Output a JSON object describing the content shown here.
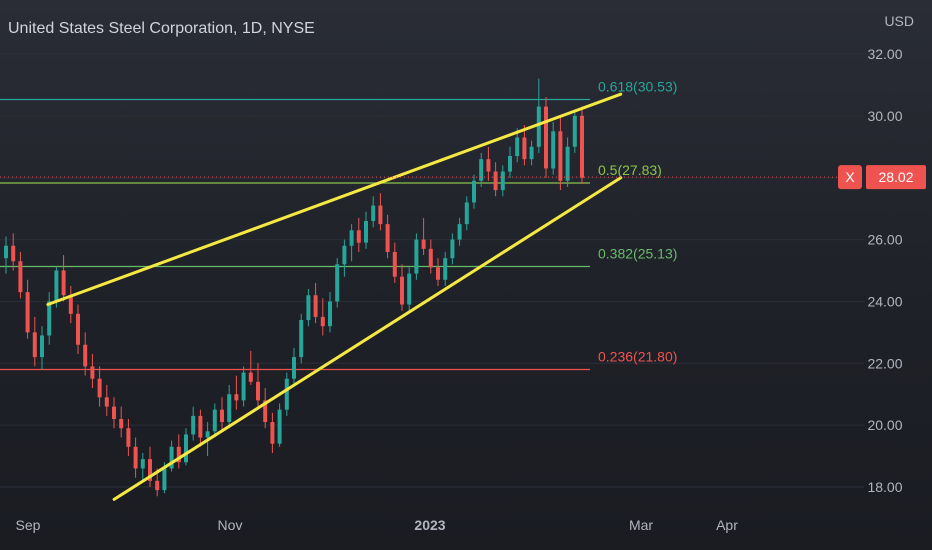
{
  "header": {
    "title": "United States Steel Corporation, 1D, NYSE",
    "currency": "USD"
  },
  "price_tag": {
    "symbol": "X",
    "value": "28.02",
    "color": "#ef5350"
  },
  "colors": {
    "up": "#26a69a",
    "down": "#ef5350",
    "wedge": "#f5e842",
    "fib_618": "#26a69a",
    "fib_5": "#8bc34a",
    "fib_382": "#66bb6a",
    "fib_236": "#ef5350"
  },
  "chart_data": {
    "type": "candlestick",
    "title": "United States Steel Corporation, 1D, NYSE",
    "y_axis": {
      "label": "USD",
      "ticks": [
        "32.00",
        "30.00",
        "28.00",
        "26.00",
        "24.00",
        "22.00",
        "20.00",
        "18.00"
      ],
      "range": [
        17.5,
        32.8
      ]
    },
    "x_axis": {
      "ticks": [
        "Sep",
        "Nov",
        "2023",
        "Mar",
        "Apr"
      ]
    },
    "fib_levels": [
      {
        "label": "0.618(30.53)",
        "value": 30.53
      },
      {
        "label": "0.5(27.83)",
        "value": 27.83
      },
      {
        "label": "0.382(25.13)",
        "value": 25.13
      },
      {
        "label": "0.236(21.80)",
        "value": 21.8
      }
    ],
    "wedge_lines": [
      {
        "name": "upper",
        "from": {
          "date": "2022-09-07",
          "price": 23.9
        },
        "to": {
          "date": "2023-02-27",
          "price": 30.7
        }
      },
      {
        "name": "lower",
        "from": {
          "date": "2022-09-27",
          "price": 17.6
        },
        "to": {
          "date": "2023-02-27",
          "price": 28.0
        }
      }
    ],
    "last_price": 28.02,
    "candles": [
      [
        25.4,
        26.1,
        24.9,
        25.8
      ],
      [
        25.8,
        26.2,
        25.0,
        25.3
      ],
      [
        25.3,
        25.6,
        24.1,
        24.3
      ],
      [
        24.3,
        24.7,
        22.8,
        23.0
      ],
      [
        23.0,
        23.5,
        21.9,
        22.2
      ],
      [
        22.2,
        23.2,
        21.8,
        22.9
      ],
      [
        22.9,
        24.3,
        22.6,
        24.0
      ],
      [
        24.0,
        25.1,
        23.8,
        25.0
      ],
      [
        25.0,
        25.5,
        24.0,
        24.2
      ],
      [
        24.2,
        24.5,
        23.3,
        23.6
      ],
      [
        23.6,
        23.9,
        22.3,
        22.6
      ],
      [
        22.6,
        23.0,
        21.6,
        21.9
      ],
      [
        21.9,
        22.3,
        21.2,
        21.5
      ],
      [
        21.5,
        21.9,
        20.6,
        20.9
      ],
      [
        20.9,
        21.3,
        20.3,
        20.6
      ],
      [
        20.6,
        20.9,
        19.9,
        20.2
      ],
      [
        20.2,
        20.6,
        19.6,
        19.9
      ],
      [
        19.9,
        20.2,
        19.0,
        19.3
      ],
      [
        19.3,
        19.6,
        18.3,
        18.6
      ],
      [
        18.6,
        19.1,
        18.2,
        18.9
      ],
      [
        18.9,
        19.3,
        18.0,
        18.2
      ],
      [
        18.2,
        18.6,
        17.7,
        17.9
      ],
      [
        17.9,
        18.8,
        17.8,
        18.6
      ],
      [
        18.6,
        19.5,
        18.5,
        19.3
      ],
      [
        19.3,
        19.7,
        18.6,
        18.8
      ],
      [
        18.8,
        19.9,
        18.7,
        19.7
      ],
      [
        19.7,
        20.6,
        19.5,
        20.3
      ],
      [
        20.3,
        20.5,
        19.3,
        19.6
      ],
      [
        19.6,
        20.1,
        19.0,
        19.8
      ],
      [
        19.8,
        20.7,
        19.6,
        20.5
      ],
      [
        20.5,
        20.9,
        19.8,
        20.1
      ],
      [
        20.1,
        21.3,
        19.9,
        21.0
      ],
      [
        21.0,
        21.6,
        20.5,
        20.8
      ],
      [
        20.8,
        21.9,
        20.6,
        21.7
      ],
      [
        21.7,
        22.4,
        21.3,
        21.4
      ],
      [
        21.4,
        22.0,
        20.6,
        20.8
      ],
      [
        20.8,
        21.2,
        19.9,
        20.1
      ],
      [
        20.1,
        20.4,
        19.1,
        19.4
      ],
      [
        19.4,
        20.7,
        19.3,
        20.5
      ],
      [
        20.5,
        21.7,
        20.3,
        21.5
      ],
      [
        21.5,
        22.5,
        21.3,
        22.2
      ],
      [
        22.2,
        23.6,
        22.0,
        23.4
      ],
      [
        23.4,
        24.4,
        23.2,
        24.2
      ],
      [
        24.2,
        24.6,
        23.3,
        23.5
      ],
      [
        23.5,
        24.1,
        22.9,
        23.2
      ],
      [
        23.2,
        24.3,
        23.0,
        24.0
      ],
      [
        24.0,
        25.4,
        23.8,
        25.2
      ],
      [
        25.2,
        26.0,
        24.8,
        25.8
      ],
      [
        25.8,
        26.5,
        25.3,
        26.3
      ],
      [
        26.3,
        26.7,
        25.6,
        25.9
      ],
      [
        25.9,
        26.9,
        25.7,
        26.6
      ],
      [
        26.6,
        27.4,
        26.4,
        27.1
      ],
      [
        27.1,
        27.5,
        26.3,
        26.5
      ],
      [
        26.5,
        26.8,
        25.4,
        25.6
      ],
      [
        25.6,
        25.9,
        24.6,
        24.8
      ],
      [
        24.8,
        25.2,
        23.7,
        23.9
      ],
      [
        23.9,
        25.1,
        23.7,
        24.9
      ],
      [
        24.9,
        26.2,
        24.7,
        26.0
      ],
      [
        26.0,
        26.7,
        25.5,
        25.7
      ],
      [
        25.7,
        26.0,
        24.9,
        25.1
      ],
      [
        25.1,
        25.4,
        24.5,
        24.7
      ],
      [
        24.7,
        25.6,
        24.5,
        25.4
      ],
      [
        25.4,
        26.2,
        25.2,
        26.0
      ],
      [
        26.0,
        26.7,
        25.8,
        26.5
      ],
      [
        26.5,
        27.4,
        26.3,
        27.2
      ],
      [
        27.2,
        28.1,
        27.0,
        27.9
      ],
      [
        27.9,
        28.8,
        27.7,
        28.6
      ],
      [
        28.6,
        29.0,
        27.9,
        28.2
      ],
      [
        28.2,
        28.5,
        27.4,
        27.6
      ],
      [
        27.6,
        28.4,
        27.4,
        28.2
      ],
      [
        28.2,
        29.0,
        28.0,
        28.7
      ],
      [
        28.7,
        29.6,
        28.5,
        29.3
      ],
      [
        29.3,
        29.7,
        28.4,
        28.6
      ],
      [
        28.6,
        29.2,
        28.4,
        29.0
      ],
      [
        29.0,
        31.2,
        28.8,
        30.3
      ],
      [
        30.3,
        30.6,
        28.0,
        28.3
      ],
      [
        28.3,
        29.8,
        28.1,
        29.5
      ],
      [
        29.5,
        30.0,
        27.6,
        27.9
      ],
      [
        27.9,
        29.3,
        27.7,
        29.0
      ],
      [
        29.0,
        30.2,
        28.8,
        30.0
      ],
      [
        30.0,
        30.3,
        27.8,
        28.0
      ]
    ]
  }
}
